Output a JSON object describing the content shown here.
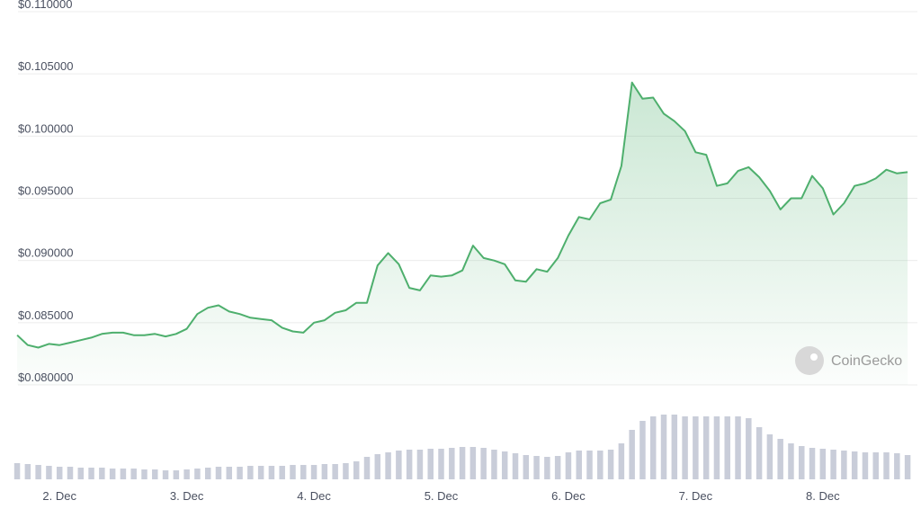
{
  "chart_data": {
    "type": "line",
    "watermark": "CoinGecko",
    "x": [
      -8,
      -6,
      -4,
      -2,
      0,
      2,
      4,
      6,
      8,
      10,
      12,
      14,
      16,
      18,
      20,
      22,
      24,
      26,
      28,
      30,
      32,
      34,
      36,
      38,
      40,
      42,
      44,
      46,
      48,
      50,
      52,
      54,
      56,
      58,
      60,
      62,
      64,
      66,
      68,
      70,
      72,
      74,
      76,
      78,
      80,
      82,
      84,
      86,
      88,
      90,
      92,
      94,
      96,
      98,
      100,
      102,
      104,
      106,
      108,
      110,
      112,
      114,
      116,
      118,
      120,
      122,
      124,
      126,
      128,
      130,
      132,
      134,
      136,
      138,
      140,
      142,
      144,
      146,
      148,
      150,
      152,
      154,
      156,
      158,
      160
    ],
    "xlim": [
      -7.5,
      161
    ],
    "xticks": [
      {
        "value": 0,
        "label": "2. Dec"
      },
      {
        "value": 24,
        "label": "3. Dec"
      },
      {
        "value": 48,
        "label": "4. Dec"
      },
      {
        "value": 72,
        "label": "5. Dec"
      },
      {
        "value": 96,
        "label": "6. Dec"
      },
      {
        "value": 120,
        "label": "7. Dec"
      },
      {
        "value": 144,
        "label": "8. Dec"
      }
    ],
    "ylim": [
      0.08,
      0.11
    ],
    "yticks": [
      {
        "value": 0.08,
        "label": "$0.080000"
      },
      {
        "value": 0.085,
        "label": "$0.085000"
      },
      {
        "value": 0.09,
        "label": "$0.090000"
      },
      {
        "value": 0.095,
        "label": "$0.095000"
      },
      {
        "value": 0.1,
        "label": "$0.100000"
      },
      {
        "value": 0.105,
        "label": "$0.105000"
      },
      {
        "value": 0.11,
        "label": "$0.110000"
      }
    ],
    "grid": true,
    "series": [
      {
        "color": "#4eaf6d",
        "values": [
          0.084,
          0.0832,
          0.083,
          0.0833,
          0.0832,
          0.0834,
          0.0836,
          0.0838,
          0.0841,
          0.0842,
          0.0842,
          0.084,
          0.084,
          0.0841,
          0.0839,
          0.0841,
          0.0845,
          0.0857,
          0.0862,
          0.0864,
          0.0859,
          0.0857,
          0.0854,
          0.0853,
          0.0852,
          0.0846,
          0.0843,
          0.0842,
          0.085,
          0.0852,
          0.0858,
          0.086,
          0.0866,
          0.0866,
          0.0896,
          0.0906,
          0.0897,
          0.0878,
          0.0876,
          0.0888,
          0.0887,
          0.0888,
          0.0892,
          0.0912,
          0.0902,
          0.09,
          0.0897,
          0.0884,
          0.0883,
          0.0893,
          0.0891,
          0.0902,
          0.092,
          0.0935,
          0.0933,
          0.0946,
          0.0949,
          0.0976,
          0.1043,
          0.103,
          0.1031,
          0.1018,
          0.1012,
          0.1004,
          0.0987,
          0.0985,
          0.096,
          0.0962,
          0.0972,
          0.0975,
          0.0967,
          0.0956,
          0.0941,
          0.095,
          0.095,
          0.0968,
          0.0958,
          0.0937,
          0.0946,
          0.096,
          0.0962,
          0.0966,
          0.0973,
          0.097,
          0.0971
        ]
      }
    ],
    "volume": {
      "color": "#c9cdd9",
      "ylim": [
        0,
        80
      ],
      "values": [
        18,
        17,
        16,
        15,
        14,
        14,
        13,
        13,
        13,
        12,
        12,
        12,
        11,
        11,
        10,
        10,
        11,
        12,
        13,
        14,
        14,
        14,
        15,
        15,
        15,
        15,
        16,
        16,
        16,
        17,
        17,
        18,
        20,
        25,
        28,
        30,
        32,
        33,
        33,
        34,
        34,
        35,
        36,
        36,
        35,
        33,
        31,
        29,
        27,
        26,
        25,
        26,
        30,
        32,
        32,
        32,
        33,
        40,
        55,
        65,
        70,
        72,
        72,
        70,
        70,
        70,
        70,
        70,
        70,
        68,
        58,
        50,
        45,
        40,
        37,
        35,
        34,
        33,
        32,
        31,
        30,
        30,
        30,
        29,
        27
      ]
    }
  }
}
